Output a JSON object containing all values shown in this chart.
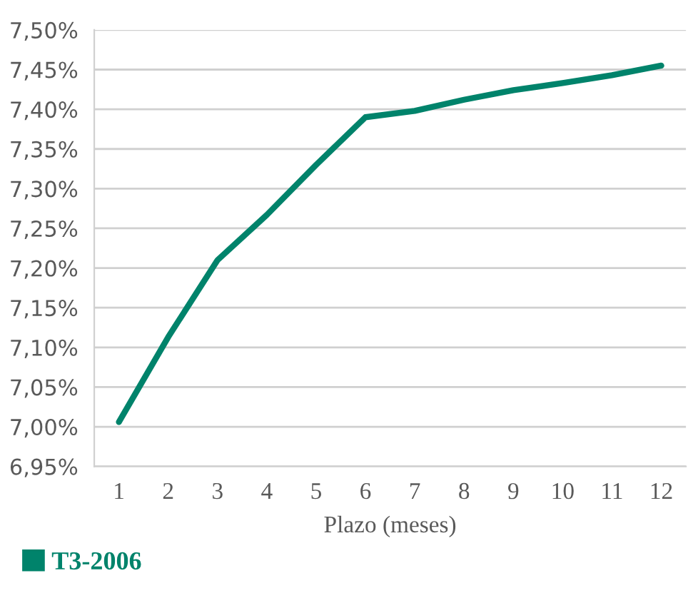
{
  "chart_data": {
    "type": "line",
    "xlabel": "Plazo (meses)",
    "categories": [
      "1",
      "2",
      "3",
      "4",
      "5",
      "6",
      "7",
      "8",
      "9",
      "10",
      "11",
      "12"
    ],
    "series": [
      {
        "name": "T3-2006",
        "color": "#00836b",
        "values": [
          7.006,
          7.113,
          7.21,
          7.267,
          7.33,
          7.39,
          7.398,
          7.412,
          7.424,
          7.433,
          7.443,
          7.455
        ]
      }
    ],
    "ylim": [
      6.95,
      7.5
    ],
    "yticks": [
      {
        "value": 6.95,
        "label": "6,95%"
      },
      {
        "value": 7.0,
        "label": "7,00%"
      },
      {
        "value": 7.05,
        "label": "7,05%"
      },
      {
        "value": 7.1,
        "label": "7,10%"
      },
      {
        "value": 7.15,
        "label": "7,15%"
      },
      {
        "value": 7.2,
        "label": "7,20%"
      },
      {
        "value": 7.25,
        "label": "7,25%"
      },
      {
        "value": 7.3,
        "label": "7,30%"
      },
      {
        "value": 7.35,
        "label": "7,35%"
      },
      {
        "value": 7.4,
        "label": "7,40%"
      },
      {
        "value": 7.45,
        "label": "7,45%"
      },
      {
        "value": 7.5,
        "label": "7,50%"
      }
    ],
    "grid": "y",
    "legend": "bottom left",
    "marker": "none",
    "line_style": "solid"
  }
}
